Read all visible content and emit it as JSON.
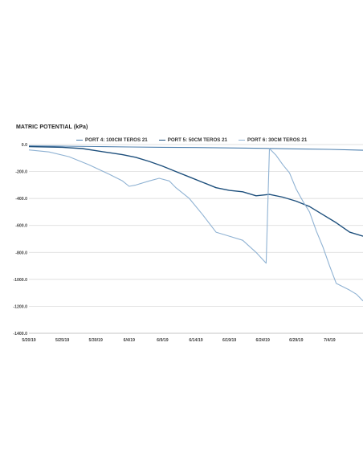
{
  "chart_data": {
    "type": "line",
    "title": "MATRIC POTENTIAL (kPa)",
    "xlabel": "",
    "ylabel": "",
    "ylim": [
      -1400,
      0
    ],
    "y_ticks": [
      0,
      -200,
      -400,
      -600,
      -800,
      -1000,
      -1200,
      -1400
    ],
    "y_tick_labels": [
      "0.0",
      "-200.0",
      "-400.0",
      "-600.0",
      "-800.0",
      "-1000.0",
      "-1200.0",
      "-1400.0"
    ],
    "x_range_days": [
      0,
      50
    ],
    "x_ticks": [
      0,
      5,
      10,
      15,
      20,
      25,
      30,
      35,
      40,
      45
    ],
    "x_tick_labels": [
      "5/20/19",
      "5/25/19",
      "5/30/19",
      "6/4/19",
      "6/9/19",
      "6/14/19",
      "6/19/19",
      "6/24/19",
      "6/29/19",
      "7/4/19"
    ],
    "grid": "horizontal",
    "legend_position": "top",
    "series": [
      {
        "name": "PORT 4: 100CM TEROS 21",
        "color": "#4d7fae",
        "points": [
          [
            0,
            -10
          ],
          [
            5,
            -12
          ],
          [
            10,
            -15
          ],
          [
            15,
            -18
          ],
          [
            20,
            -20
          ],
          [
            25,
            -22
          ],
          [
            30,
            -25
          ],
          [
            35,
            -28
          ],
          [
            40,
            -32
          ],
          [
            45,
            -36
          ],
          [
            50,
            -42
          ]
        ]
      },
      {
        "name": "PORT 5: 50CM TEROS 21",
        "color": "#1d4f7c",
        "points": [
          [
            0,
            -15
          ],
          [
            5,
            -20
          ],
          [
            8,
            -30
          ],
          [
            10,
            -45
          ],
          [
            12,
            -60
          ],
          [
            14,
            -75
          ],
          [
            16,
            -95
          ],
          [
            18,
            -125
          ],
          [
            20,
            -160
          ],
          [
            22,
            -200
          ],
          [
            24,
            -240
          ],
          [
            26,
            -280
          ],
          [
            28,
            -320
          ],
          [
            30,
            -340
          ],
          [
            32,
            -350
          ],
          [
            34,
            -380
          ],
          [
            36,
            -370
          ],
          [
            38,
            -390
          ],
          [
            40,
            -420
          ],
          [
            42,
            -460
          ],
          [
            44,
            -520
          ],
          [
            46,
            -580
          ],
          [
            48,
            -650
          ],
          [
            50,
            -680
          ]
        ]
      },
      {
        "name": "PORT 6: 30CM TEROS 21",
        "color": "#8fb2d3",
        "points": [
          [
            0,
            -40
          ],
          [
            3,
            -55
          ],
          [
            6,
            -90
          ],
          [
            9,
            -150
          ],
          [
            12,
            -220
          ],
          [
            14,
            -270
          ],
          [
            15,
            -310
          ],
          [
            16,
            -300
          ],
          [
            18,
            -270
          ],
          [
            19.5,
            -250
          ],
          [
            21,
            -270
          ],
          [
            22,
            -320
          ],
          [
            24,
            -400
          ],
          [
            26,
            -520
          ],
          [
            28,
            -650
          ],
          [
            30,
            -680
          ],
          [
            32,
            -710
          ],
          [
            34,
            -800
          ],
          [
            35.5,
            -880
          ],
          [
            36,
            -30
          ],
          [
            37,
            -80
          ],
          [
            38,
            -150
          ],
          [
            39,
            -210
          ],
          [
            40,
            -330
          ],
          [
            41,
            -420
          ],
          [
            42,
            -500
          ],
          [
            43,
            -640
          ],
          [
            44,
            -760
          ],
          [
            45,
            -900
          ],
          [
            46,
            -1030
          ],
          [
            48,
            -1080
          ],
          [
            49,
            -1110
          ],
          [
            50,
            -1160
          ]
        ]
      }
    ]
  }
}
